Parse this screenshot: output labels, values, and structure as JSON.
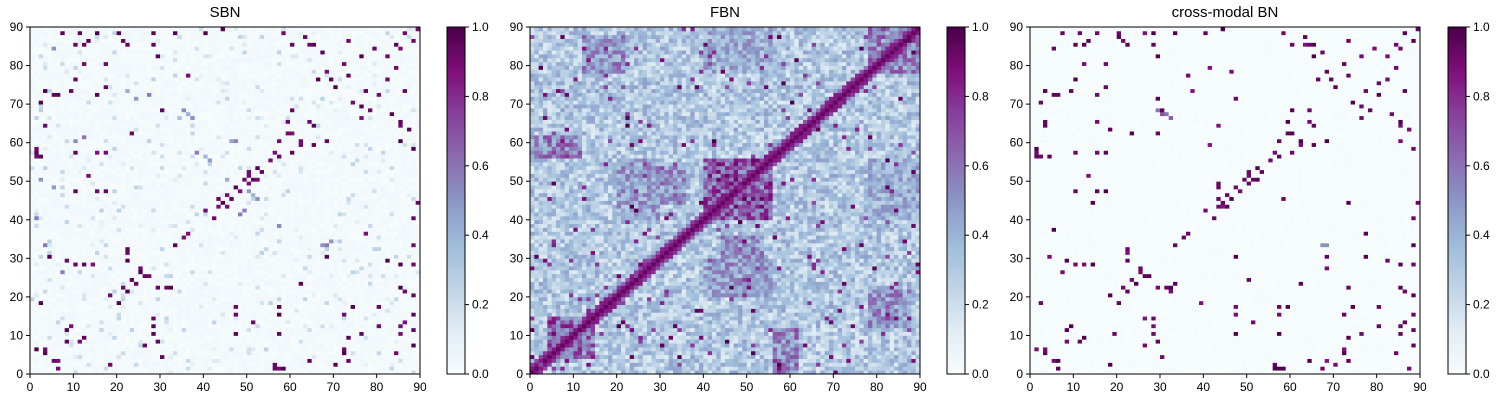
{
  "chart_data": [
    {
      "type": "heatmap",
      "title": "SBN",
      "xlabel": "",
      "ylabel": "",
      "xlim": [
        0,
        90
      ],
      "ylim": [
        0,
        90
      ],
      "xticks": [
        "0",
        "10",
        "20",
        "30",
        "40",
        "50",
        "60",
        "70",
        "80",
        "90"
      ],
      "yticks": [
        "0",
        "10",
        "20",
        "30",
        "40",
        "50",
        "60",
        "70",
        "80",
        "90"
      ],
      "colorbar": {
        "min": 0.0,
        "max": 1.0,
        "ticks": [
          "0.0",
          "0.2",
          "0.4",
          "0.6",
          "0.8",
          "1.0"
        ],
        "colormap": "BuPu"
      },
      "matrix_size": 90,
      "pattern": "sparse structural connectivity with strong interhemispheric pairs; background near 0",
      "strong_cells": [
        [
          43,
          43
        ],
        [
          44,
          44
        ],
        [
          45,
          43
        ],
        [
          43,
          45
        ],
        [
          46,
          45
        ],
        [
          49,
          50
        ],
        [
          50,
          51
        ],
        [
          52,
          50
        ],
        [
          53,
          52
        ],
        [
          55,
          55
        ],
        [
          57,
          56
        ],
        [
          48,
          47
        ],
        [
          47,
          48
        ],
        [
          10,
          47
        ],
        [
          15,
          47
        ],
        [
          17,
          47
        ],
        [
          57,
          10
        ],
        [
          57,
          15
        ],
        [
          57,
          17
        ],
        [
          3,
          73
        ],
        [
          6,
          72
        ],
        [
          9,
          73
        ],
        [
          15,
          72
        ],
        [
          40,
          42
        ],
        [
          42,
          40
        ],
        [
          1,
          57
        ],
        [
          2,
          56
        ],
        [
          7,
          88
        ],
        [
          10,
          85
        ],
        [
          13,
          86
        ],
        [
          20,
          88
        ],
        [
          22,
          85
        ],
        [
          28,
          88
        ],
        [
          36,
          77
        ],
        [
          40,
          88
        ],
        [
          44,
          89
        ],
        [
          58,
          88
        ],
        [
          60,
          85
        ],
        [
          64,
          85
        ],
        [
          67,
          83
        ],
        [
          73,
          86
        ],
        [
          77,
          73
        ],
        [
          80,
          72
        ],
        [
          82,
          82
        ],
        [
          84,
          85
        ],
        [
          86,
          88
        ],
        [
          89,
          89
        ],
        [
          18,
          20
        ],
        [
          21,
          22
        ],
        [
          23,
          24
        ],
        [
          25,
          26
        ],
        [
          27,
          25
        ],
        [
          31,
          22
        ],
        [
          33,
          33
        ],
        [
          35,
          35
        ],
        [
          36,
          36
        ],
        [
          5,
          3
        ],
        [
          6,
          1
        ],
        [
          3,
          6
        ],
        [
          8,
          8
        ],
        [
          18,
          2
        ],
        [
          2,
          18
        ],
        [
          29,
          22
        ],
        [
          32,
          22
        ],
        [
          20,
          18
        ],
        [
          66,
          76
        ],
        [
          70,
          74
        ],
        [
          76,
          69
        ],
        [
          78,
          68
        ],
        [
          82,
          76
        ],
        [
          85,
          65
        ],
        [
          87,
          63
        ],
        [
          84,
          79
        ],
        [
          60,
          57
        ],
        [
          62,
          60
        ],
        [
          64,
          65
        ],
        [
          59,
          62
        ],
        [
          65,
          59
        ],
        [
          68,
          60
        ],
        [
          72,
          5
        ],
        [
          74,
          17
        ],
        [
          76,
          10
        ],
        [
          80,
          12
        ],
        [
          85,
          12
        ],
        [
          88,
          11
        ],
        [
          88,
          15
        ],
        [
          86,
          21
        ],
        [
          88,
          33
        ],
        [
          90,
          51
        ],
        [
          90,
          55
        ],
        [
          30,
          4
        ],
        [
          26,
          7
        ],
        [
          12,
          9
        ],
        [
          8,
          11
        ],
        [
          56,
          1
        ],
        [
          58,
          1
        ],
        [
          64,
          3
        ],
        [
          70,
          2
        ],
        [
          84,
          5
        ],
        [
          88,
          7
        ],
        [
          80,
          17
        ],
        [
          82,
          29
        ],
        [
          85,
          28
        ],
        [
          88,
          28
        ],
        [
          29,
          8
        ],
        [
          28,
          10
        ],
        [
          28,
          12
        ],
        [
          28,
          14
        ],
        [
          68,
          30
        ],
        [
          62,
          23
        ],
        [
          51,
          13
        ]
      ],
      "medium_cells": [
        [
          36,
          67
        ],
        [
          35,
          68
        ],
        [
          34,
          66
        ],
        [
          37,
          66
        ],
        [
          2,
          50
        ],
        [
          5,
          48
        ],
        [
          1,
          40
        ],
        [
          3,
          33
        ],
        [
          7,
          26
        ],
        [
          10,
          60
        ],
        [
          12,
          61
        ],
        [
          5,
          84
        ],
        [
          27,
          72
        ],
        [
          24,
          71
        ],
        [
          22,
          73
        ],
        [
          41,
          55
        ],
        [
          40,
          56
        ],
        [
          38,
          57
        ],
        [
          57,
          38
        ],
        [
          46,
          60
        ],
        [
          47,
          60
        ],
        [
          68,
          33
        ],
        [
          67,
          33
        ],
        [
          69,
          34
        ],
        [
          50,
          47
        ],
        [
          51,
          46
        ],
        [
          52,
          45
        ],
        [
          45,
          50
        ],
        [
          48,
          41
        ],
        [
          49,
          42
        ]
      ]
    },
    {
      "type": "heatmap",
      "title": "FBN",
      "xlabel": "",
      "ylabel": "",
      "xlim": [
        0,
        90
      ],
      "ylim": [
        0,
        90
      ],
      "xticks": [
        "0",
        "10",
        "20",
        "30",
        "40",
        "50",
        "60",
        "70",
        "80",
        "90"
      ],
      "yticks": [
        "0",
        "10",
        "20",
        "30",
        "40",
        "50",
        "60",
        "70",
        "80",
        "90"
      ],
      "colorbar": {
        "min": 0.0,
        "max": 1.0,
        "ticks": [
          "0.0",
          "0.2",
          "0.4",
          "0.6",
          "0.8",
          "1.0"
        ],
        "colormap": "BuPu"
      },
      "matrix_size": 90,
      "pattern": "dense functional connectivity; strong diagonal band; blocks of high correlation around 40-56 and 5-15",
      "blocks": [
        {
          "x": [
            40,
            56
          ],
          "y": [
            40,
            56
          ],
          "v": 0.75
        },
        {
          "x": [
            4,
            15
          ],
          "y": [
            4,
            15
          ],
          "v": 0.7
        },
        {
          "x": [
            78,
            90
          ],
          "y": [
            78,
            90
          ],
          "v": 0.6
        },
        {
          "x": [
            12,
            22
          ],
          "y": [
            78,
            88
          ],
          "v": 0.55
        },
        {
          "x": [
            78,
            88
          ],
          "y": [
            12,
            22
          ],
          "v": 0.55
        },
        {
          "x": [
            40,
            56
          ],
          "y": [
            78,
            90
          ],
          "v": 0.45
        },
        {
          "x": [
            78,
            90
          ],
          "y": [
            40,
            56
          ],
          "v": 0.45
        },
        {
          "x": [
            20,
            30
          ],
          "y": [
            40,
            56
          ],
          "v": 0.5
        },
        {
          "x": [
            40,
            56
          ],
          "y": [
            20,
            30
          ],
          "v": 0.5
        },
        {
          "x": [
            56,
            62
          ],
          "y": [
            0,
            12
          ],
          "v": 0.6
        },
        {
          "x": [
            0,
            12
          ],
          "y": [
            56,
            62
          ],
          "v": 0.6
        },
        {
          "x": [
            44,
            54
          ],
          "y": [
            28,
            36
          ],
          "v": 0.55
        },
        {
          "x": [
            28,
            36
          ],
          "y": [
            44,
            54
          ],
          "v": 0.55
        }
      ]
    },
    {
      "type": "heatmap",
      "title": "cross-modal BN",
      "xlabel": "",
      "ylabel": "",
      "xlim": [
        0,
        90
      ],
      "ylim": [
        0,
        90
      ],
      "xticks": [
        "0",
        "10",
        "20",
        "30",
        "40",
        "50",
        "60",
        "70",
        "80",
        "90"
      ],
      "yticks": [
        "0",
        "10",
        "20",
        "30",
        "40",
        "50",
        "60",
        "70",
        "80",
        "90"
      ],
      "colorbar": {
        "min": 0.0,
        "max": 1.0,
        "ticks": [
          "0.0",
          "0.2",
          "0.4",
          "0.6",
          "0.8",
          "1.0"
        ],
        "colormap": "BuPu"
      },
      "matrix_size": 90,
      "pattern": "very sparse binarized network sharing the SBN strong edges",
      "strong_cells_ref": "same as SBN strong_cells",
      "medium_cells": [
        [
          68,
          33
        ],
        [
          67,
          33
        ],
        [
          29,
          68
        ],
        [
          30,
          67
        ],
        [
          31,
          67
        ],
        [
          32,
          66
        ]
      ]
    }
  ]
}
